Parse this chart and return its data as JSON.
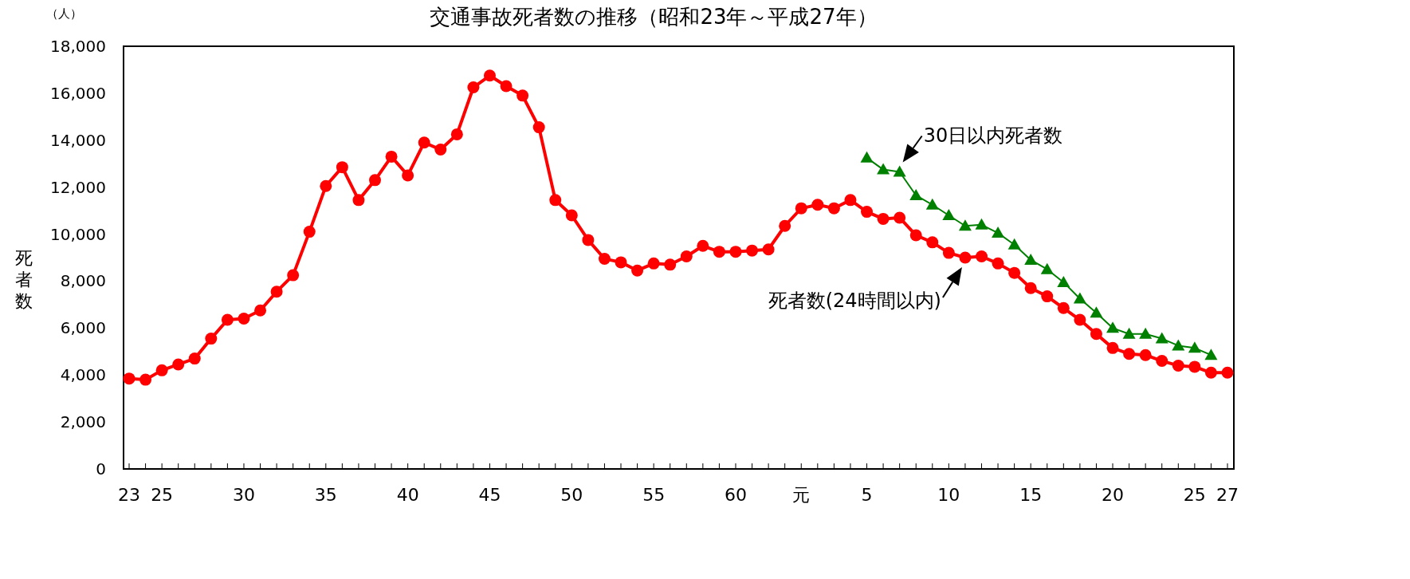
{
  "chart_data": {
    "type": "line",
    "title": "交通事故死者数の推移（昭和23年～平成27年）",
    "ylabel": "死者数",
    "annotations": [
      "（人）"
    ],
    "categories": [
      "23",
      null,
      "25",
      null,
      null,
      null,
      null,
      "30",
      null,
      null,
      null,
      null,
      "35",
      null,
      null,
      null,
      null,
      "40",
      null,
      null,
      null,
      null,
      "45",
      null,
      null,
      null,
      null,
      "50",
      null,
      null,
      null,
      null,
      "55",
      null,
      null,
      null,
      null,
      "60",
      null,
      null,
      null,
      "元",
      null,
      null,
      null,
      "5",
      null,
      null,
      null,
      null,
      "10",
      null,
      null,
      null,
      null,
      "15",
      null,
      null,
      null,
      null,
      "20",
      null,
      null,
      null,
      null,
      "25",
      null,
      "27"
    ],
    "series": [
      {
        "name": "死者数(24時間以内)",
        "color": "#ff0000",
        "marker": "circle",
        "values": [
          3850,
          3800,
          4200,
          4450,
          4700,
          5550,
          6350,
          6400,
          6750,
          7550,
          8250,
          10100,
          12050,
          12850,
          11450,
          12300,
          13300,
          12500,
          13900,
          13600,
          14250,
          16250,
          16750,
          16300,
          15900,
          14550,
          11450,
          10800,
          9750,
          8950,
          8800,
          8450,
          8750,
          8700,
          9050,
          9500,
          9250,
          9250,
          9300,
          9350,
          10350,
          11100,
          11250,
          11100,
          11450,
          10950,
          10650,
          10700,
          9950,
          9650,
          9200,
          9000,
          9050,
          8750,
          8350,
          7700,
          7350,
          6850,
          6350,
          5750,
          5150,
          4900,
          4850,
          4600,
          4400,
          4350,
          4100,
          4100
        ]
      },
      {
        "name": "30日以内死者数",
        "color": "#008000",
        "marker": "triangle",
        "values": [
          null,
          null,
          null,
          null,
          null,
          null,
          null,
          null,
          null,
          null,
          null,
          null,
          null,
          null,
          null,
          null,
          null,
          null,
          null,
          null,
          null,
          null,
          null,
          null,
          null,
          null,
          null,
          null,
          null,
          null,
          null,
          null,
          null,
          null,
          null,
          null,
          null,
          null,
          null,
          null,
          null,
          null,
          null,
          null,
          null,
          13250,
          12750,
          12650,
          11650,
          11250,
          10800,
          10350,
          10400,
          10050,
          9550,
          8900,
          8500,
          7950,
          7250,
          6650,
          6000,
          5750,
          5750,
          5550,
          5250,
          5150,
          4850,
          null
        ]
      }
    ],
    "ylim": [
      0,
      18000
    ],
    "yticks": [
      {
        "value": 0,
        "label": "0"
      },
      {
        "value": 2000,
        "label": "2,000"
      },
      {
        "value": 4000,
        "label": "4,000"
      },
      {
        "value": 6000,
        "label": "6,000"
      },
      {
        "value": 8000,
        "label": "8,000"
      },
      {
        "value": 10000,
        "label": "10,000"
      },
      {
        "value": 12000,
        "label": "12,000"
      },
      {
        "value": 14000,
        "label": "14,000"
      },
      {
        "value": 16000,
        "label": "16,000"
      },
      {
        "value": 18000,
        "label": "18,000"
      }
    ],
    "grid": false,
    "legend": false
  }
}
